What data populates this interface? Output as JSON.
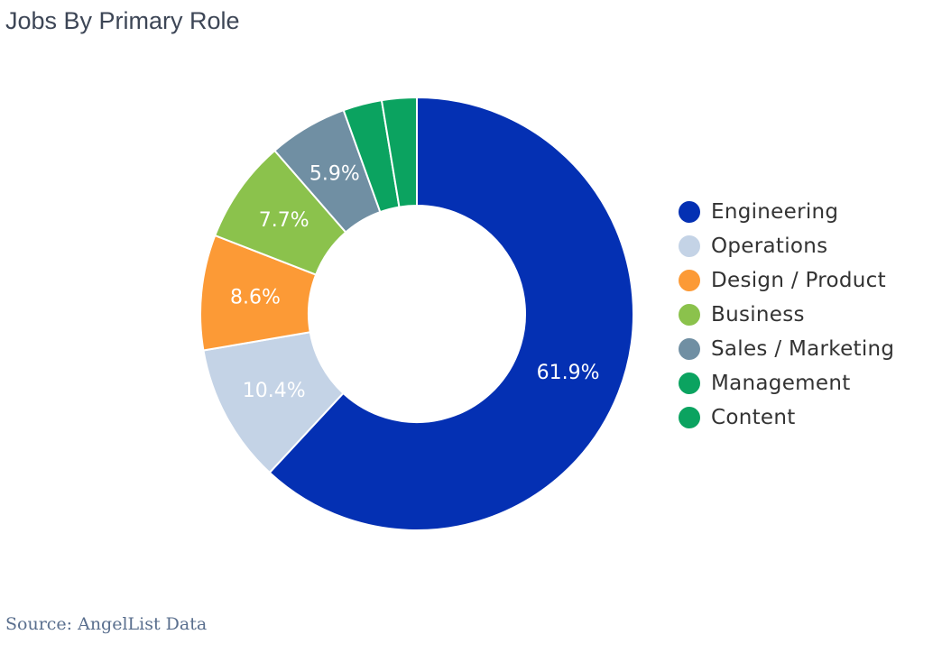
{
  "title": "Jobs By Primary Role",
  "source": "Source: AngelList Data",
  "chart_data": {
    "type": "pie",
    "variant": "donut",
    "title": "Jobs By Primary Role",
    "legend_position": "right",
    "slices": [
      {
        "name": "Engineering",
        "value": 61.9,
        "label": "61.9%",
        "color": "#0430b3"
      },
      {
        "name": "Operations",
        "value": 10.4,
        "label": "10.4%",
        "color": "#c4d3e6"
      },
      {
        "name": "Design / Product",
        "value": 8.6,
        "label": "8.6%",
        "color": "#fc9a36"
      },
      {
        "name": "Business",
        "value": 7.7,
        "label": "7.7%",
        "color": "#8bc24c"
      },
      {
        "name": "Sales / Marketing",
        "value": 5.9,
        "label": "5.9%",
        "color": "#708fa3"
      },
      {
        "name": "Management",
        "value": 2.9,
        "label": "",
        "color": "#0ba360"
      },
      {
        "name": "Content",
        "value": 2.6,
        "label": "",
        "color": "#0ba360"
      }
    ]
  }
}
